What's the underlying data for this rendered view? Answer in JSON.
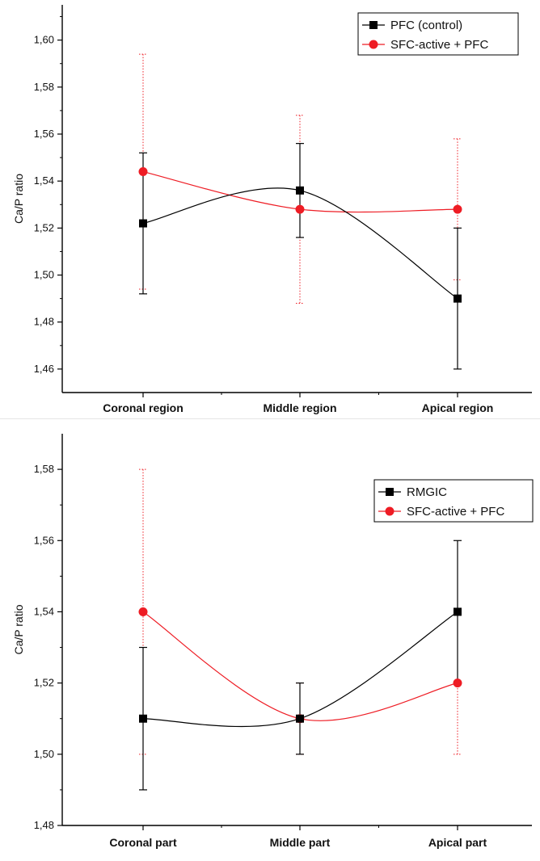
{
  "chart_data": [
    {
      "type": "line",
      "ylabel": "Ca/P ratio",
      "categories": [
        "Coronal region",
        "Middle region",
        "Apical region"
      ],
      "ylim": [
        1.45,
        1.615
      ],
      "yticks": [
        "1,46",
        "1,48",
        "1,50",
        "1,52",
        "1,54",
        "1,56",
        "1,58",
        "1,60"
      ],
      "legend_position": "top-right",
      "series": [
        {
          "name": "PFC (control)",
          "color": "#000000",
          "marker": "square",
          "values": [
            1.522,
            1.536,
            1.49
          ],
          "error_low": [
            1.492,
            1.516,
            1.46
          ],
          "error_high": [
            1.552,
            1.556,
            1.52
          ]
        },
        {
          "name": "SFC-active + PFC",
          "color": "#ee1c24",
          "marker": "circle",
          "values": [
            1.544,
            1.528,
            1.528
          ],
          "error_low": [
            1.494,
            1.488,
            1.498
          ],
          "error_high": [
            1.594,
            1.568,
            1.558
          ]
        }
      ]
    },
    {
      "type": "line",
      "ylabel": "Ca/P ratio",
      "categories": [
        "Coronal part",
        "Middle part",
        "Apical part"
      ],
      "ylim": [
        1.48,
        1.59
      ],
      "yticks": [
        "1,48",
        "1,50",
        "1,52",
        "1,54",
        "1,56",
        "1,58"
      ],
      "legend_position": "top-right",
      "series": [
        {
          "name": "RMGIC",
          "color": "#000000",
          "marker": "square",
          "values": [
            1.51,
            1.51,
            1.54
          ],
          "error_low": [
            1.49,
            1.5,
            1.52
          ],
          "error_high": [
            1.53,
            1.52,
            1.56
          ]
        },
        {
          "name": "SFC-active + PFC",
          "color": "#ee1c24",
          "marker": "circle",
          "values": [
            1.54,
            1.51,
            1.52
          ],
          "error_low": [
            1.5,
            1.5,
            1.5
          ],
          "error_high": [
            1.58,
            1.52,
            1.54
          ]
        }
      ]
    }
  ]
}
